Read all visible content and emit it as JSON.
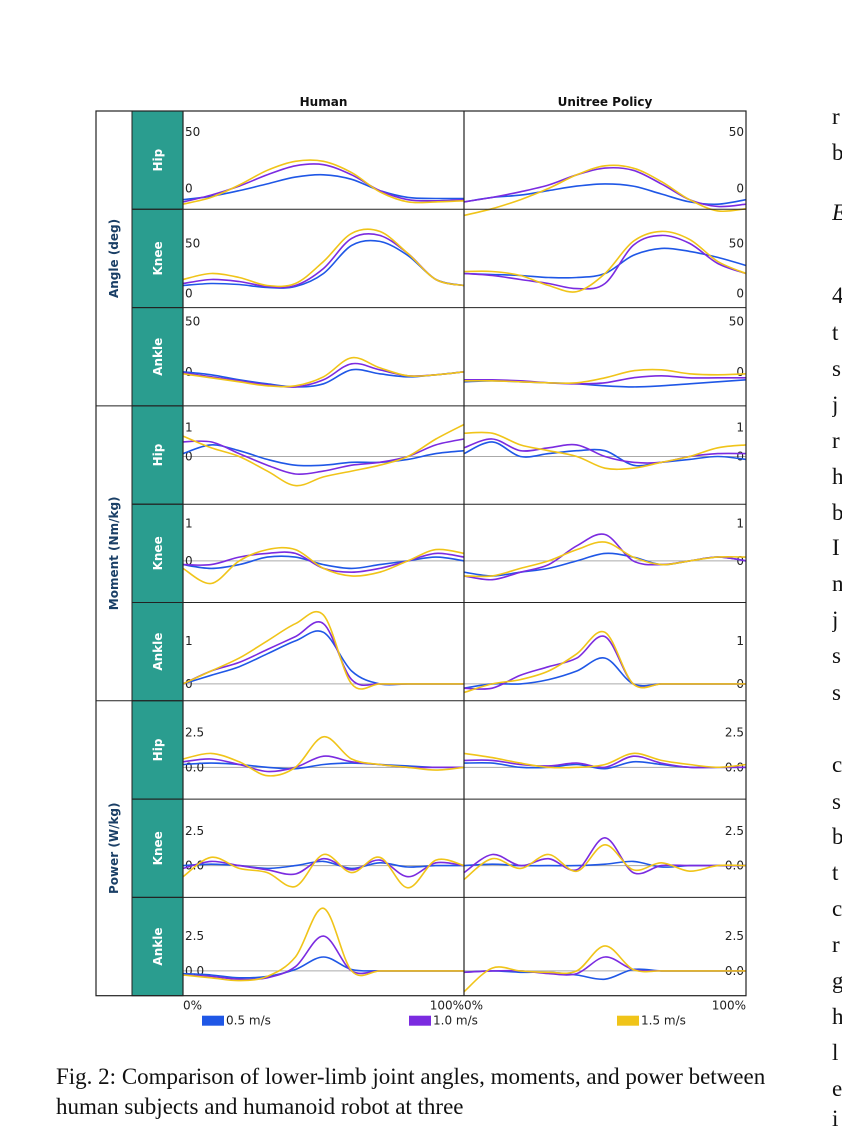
{
  "chart_data": {
    "type": "line",
    "columns": [
      "Human",
      "Unitree Policy"
    ],
    "groups": [
      {
        "label": "Angle (deg)",
        "rows": [
          "Hip",
          "Knee",
          "Ankle"
        ]
      },
      {
        "label": "Moment (Nm/kg)",
        "rows": [
          "Hip",
          "Knee",
          "Ankle"
        ]
      },
      {
        "label": "Power (W/kg)",
        "rows": [
          "Hip",
          "Knee",
          "Ankle"
        ]
      }
    ],
    "x_tick_labels": [
      "0%",
      "100%"
    ],
    "xlim": [
      0,
      100
    ],
    "series_legend": [
      {
        "name": "0.5 m/s",
        "color": "#1f57e6"
      },
      {
        "name": "1.0 m/s",
        "color": "#7b2be0"
      },
      {
        "name": "1.5 m/s",
        "color": "#f0c419"
      }
    ],
    "x": [
      0,
      10,
      20,
      30,
      40,
      50,
      60,
      70,
      80,
      90,
      100
    ],
    "panels": [
      {
        "measure": "Angle (deg)",
        "joint": "Hip",
        "source": "Human",
        "ylim": [
          -15,
          65
        ],
        "yticks": [
          "50",
          "0"
        ],
        "yticks_values": [
          50,
          0
        ],
        "zero_line": false,
        "series": [
          [
            -10,
            -7,
            -2,
            4,
            10,
            12,
            8,
            -2,
            -8,
            -9,
            -9
          ],
          [
            -12,
            -6,
            2,
            12,
            20,
            21,
            12,
            -2,
            -10,
            -11,
            -10
          ],
          [
            -14,
            -8,
            3,
            16,
            24,
            24,
            14,
            -3,
            -12,
            -12,
            -11
          ]
        ]
      },
      {
        "measure": "Angle (deg)",
        "joint": "Hip",
        "source": "Unitree Policy",
        "ylim": [
          -15,
          65
        ],
        "yticks": [
          "50",
          "0"
        ],
        "yticks_values": [
          50,
          0
        ],
        "zero_line": false,
        "series": [
          [
            -12,
            -8,
            -6,
            -2,
            2,
            4,
            2,
            -5,
            -12,
            -14,
            -10
          ],
          [
            -12,
            -8,
            -3,
            3,
            12,
            18,
            16,
            4,
            -10,
            -16,
            -14
          ],
          [
            -24,
            -18,
            -10,
            0,
            12,
            20,
            18,
            6,
            -10,
            -20,
            -18
          ]
        ]
      },
      {
        "measure": "Angle (deg)",
        "joint": "Knee",
        "source": "Human",
        "ylim": [
          -10,
          80
        ],
        "yticks": [
          "50",
          "0"
        ],
        "yticks_values": [
          50,
          0
        ],
        "zero_line": false,
        "series": [
          [
            8,
            10,
            9,
            6,
            7,
            20,
            48,
            52,
            38,
            14,
            8
          ],
          [
            10,
            14,
            12,
            7,
            8,
            25,
            55,
            58,
            40,
            14,
            8
          ],
          [
            14,
            20,
            16,
            8,
            10,
            32,
            60,
            62,
            40,
            14,
            8
          ]
        ]
      },
      {
        "measure": "Angle (deg)",
        "joint": "Knee",
        "source": "Unitree Policy",
        "ylim": [
          -10,
          80
        ],
        "yticks": [
          "50",
          "0"
        ],
        "yticks_values": [
          50,
          0
        ],
        "zero_line": false,
        "series": [
          [
            20,
            19,
            18,
            16,
            16,
            20,
            38,
            45,
            42,
            36,
            28
          ],
          [
            20,
            18,
            14,
            10,
            5,
            10,
            48,
            58,
            50,
            30,
            20
          ],
          [
            22,
            22,
            18,
            8,
            2,
            20,
            52,
            62,
            54,
            32,
            20
          ]
        ]
      },
      {
        "measure": "Angle (deg)",
        "joint": "Ankle",
        "source": "Human",
        "ylim": [
          -30,
          60
        ],
        "yticks": [
          "50",
          "0"
        ],
        "yticks_values": [
          50,
          0
        ],
        "zero_line": false,
        "series": [
          [
            0,
            -3,
            -8,
            -12,
            -15,
            -12,
            2,
            -2,
            -5,
            -3,
            0
          ],
          [
            -1,
            -5,
            -9,
            -13,
            -15,
            -8,
            8,
            2,
            -4,
            -3,
            0
          ],
          [
            -2,
            -6,
            -10,
            -14,
            -14,
            -5,
            14,
            4,
            -4,
            -3,
            0
          ]
        ]
      },
      {
        "measure": "Angle (deg)",
        "joint": "Ankle",
        "source": "Unitree Policy",
        "ylim": [
          -30,
          60
        ],
        "yticks": [
          "50",
          "0"
        ],
        "yticks_values": [
          50,
          0
        ],
        "zero_line": false,
        "series": [
          [
            -10,
            -9,
            -10,
            -11,
            -12,
            -14,
            -15,
            -14,
            -12,
            -10,
            -8
          ],
          [
            -8,
            -8,
            -9,
            -11,
            -12,
            -11,
            -6,
            -4,
            -6,
            -6,
            -6
          ],
          [
            -9,
            -9,
            -10,
            -11,
            -11,
            -6,
            1,
            2,
            -2,
            -3,
            -2
          ]
        ]
      },
      {
        "measure": "Moment (Nm/kg)",
        "joint": "Hip",
        "source": "Human",
        "ylim": [
          -1.5,
          1.6
        ],
        "yticks": [
          "1",
          "0"
        ],
        "yticks_values": [
          1,
          0
        ],
        "zero_line": true,
        "series": [
          [
            0.1,
            0.4,
            0.2,
            -0.1,
            -0.3,
            -0.3,
            -0.2,
            -0.2,
            -0.1,
            0.1,
            0.2
          ],
          [
            0.5,
            0.5,
            0.1,
            -0.3,
            -0.6,
            -0.5,
            -0.3,
            -0.2,
            0.0,
            0.4,
            0.6
          ],
          [
            0.7,
            0.3,
            0.0,
            -0.5,
            -1.0,
            -0.7,
            -0.5,
            -0.3,
            0.0,
            0.6,
            1.1
          ]
        ]
      },
      {
        "measure": "Moment (Nm/kg)",
        "joint": "Hip",
        "source": "Unitree Policy",
        "ylim": [
          -1.5,
          1.6
        ],
        "yticks": [
          "1",
          "0"
        ],
        "yticks_values": [
          1,
          0
        ],
        "zero_line": true,
        "series": [
          [
            0.1,
            0.5,
            0.0,
            0.1,
            0.2,
            0.2,
            -0.3,
            -0.2,
            -0.1,
            0.0,
            -0.1
          ],
          [
            0.3,
            0.6,
            0.2,
            0.3,
            0.4,
            0.0,
            -0.2,
            -0.2,
            0.0,
            0.1,
            0.1
          ],
          [
            0.8,
            0.8,
            0.4,
            0.2,
            0.0,
            -0.4,
            -0.4,
            -0.2,
            0.0,
            0.3,
            0.4
          ]
        ]
      },
      {
        "measure": "Moment (Nm/kg)",
        "joint": "Knee",
        "source": "Human",
        "ylim": [
          -1.0,
          1.4
        ],
        "yticks": [
          "1",
          "0"
        ],
        "yticks_values": [
          1,
          0
        ],
        "zero_line": true,
        "series": [
          [
            -0.1,
            -0.2,
            -0.1,
            0.1,
            0.1,
            -0.1,
            -0.2,
            -0.1,
            0.0,
            0.1,
            0.0
          ],
          [
            -0.1,
            -0.1,
            0.1,
            0.2,
            0.2,
            -0.2,
            -0.3,
            -0.2,
            0.0,
            0.2,
            0.1
          ],
          [
            -0.2,
            -0.6,
            0.0,
            0.3,
            0.3,
            -0.2,
            -0.4,
            -0.3,
            0.0,
            0.3,
            0.2
          ]
        ]
      },
      {
        "measure": "Moment (Nm/kg)",
        "joint": "Knee",
        "source": "Unitree Policy",
        "ylim": [
          -1.0,
          1.4
        ],
        "yticks": [
          "1",
          "0"
        ],
        "yticks_values": [
          1,
          0
        ],
        "zero_line": true,
        "series": [
          [
            -0.3,
            -0.4,
            -0.3,
            -0.2,
            0.0,
            0.2,
            0.1,
            -0.1,
            0.0,
            0.1,
            0.0
          ],
          [
            -0.4,
            -0.5,
            -0.3,
            -0.1,
            0.4,
            0.7,
            0.0,
            -0.1,
            0.0,
            0.1,
            0.0
          ],
          [
            -0.4,
            -0.4,
            -0.2,
            0.0,
            0.3,
            0.5,
            0.1,
            -0.1,
            0.0,
            0.1,
            0.1
          ]
        ]
      },
      {
        "measure": "Moment (Nm/kg)",
        "joint": "Ankle",
        "source": "Human",
        "ylim": [
          -0.3,
          1.8
        ],
        "yticks": [
          "1",
          "0"
        ],
        "yticks_values": [
          1,
          0
        ],
        "zero_line": true,
        "series": [
          [
            0.0,
            0.2,
            0.4,
            0.7,
            1.0,
            1.2,
            0.3,
            0.0,
            0.0,
            0.0,
            0.0
          ],
          [
            0.0,
            0.3,
            0.5,
            0.8,
            1.1,
            1.4,
            0.1,
            0.0,
            0.0,
            0.0,
            0.0
          ],
          [
            0.0,
            0.3,
            0.6,
            1.0,
            1.4,
            1.6,
            0.0,
            0.0,
            0.0,
            0.0,
            0.0
          ]
        ]
      },
      {
        "measure": "Moment (Nm/kg)",
        "joint": "Ankle",
        "source": "Unitree Policy",
        "ylim": [
          -0.3,
          1.8
        ],
        "yticks": [
          "1",
          "0"
        ],
        "yticks_values": [
          1,
          0
        ],
        "zero_line": true,
        "series": [
          [
            -0.1,
            0.0,
            0.0,
            0.1,
            0.3,
            0.6,
            0.0,
            0.0,
            0.0,
            0.0,
            0.0
          ],
          [
            -0.1,
            -0.1,
            0.2,
            0.4,
            0.6,
            1.1,
            0.0,
            0.0,
            0.0,
            0.0,
            0.0
          ],
          [
            -0.2,
            0.0,
            0.1,
            0.3,
            0.7,
            1.2,
            0.0,
            0.0,
            0.0,
            0.0,
            0.0
          ]
        ]
      },
      {
        "measure": "Power (W/kg)",
        "joint": "Hip",
        "source": "Human",
        "ylim": [
          -2.0,
          4.5
        ],
        "yticks": [
          "2.5",
          "0.0"
        ],
        "yticks_values": [
          2.5,
          0
        ],
        "zero_line": true,
        "series": [
          [
            0.2,
            0.3,
            0.2,
            0.0,
            -0.1,
            0.2,
            0.3,
            0.2,
            0.1,
            0.0,
            0.0
          ],
          [
            0.4,
            0.6,
            0.2,
            -0.3,
            0.0,
            0.8,
            0.4,
            0.2,
            0.0,
            0.0,
            0.0
          ],
          [
            0.6,
            1.0,
            0.4,
            -0.6,
            0.0,
            2.2,
            0.6,
            0.2,
            0.0,
            -0.2,
            0.0
          ]
        ]
      },
      {
        "measure": "Power (W/kg)",
        "joint": "Hip",
        "source": "Unitree Policy",
        "ylim": [
          -2.0,
          4.5
        ],
        "yticks": [
          "2.5",
          "0.0"
        ],
        "yticks_values": [
          2.5,
          0
        ],
        "zero_line": true,
        "series": [
          [
            0.3,
            0.3,
            0.0,
            0.0,
            0.2,
            -0.1,
            0.4,
            0.2,
            0.0,
            0.0,
            0.0
          ],
          [
            0.5,
            0.5,
            0.2,
            0.1,
            0.3,
            0.0,
            0.8,
            0.3,
            0.0,
            0.0,
            0.0
          ],
          [
            1.0,
            0.7,
            0.3,
            0.0,
            0.0,
            0.2,
            1.0,
            0.5,
            0.2,
            0.0,
            0.2
          ]
        ]
      },
      {
        "measure": "Power (W/kg)",
        "joint": "Knee",
        "source": "Human",
        "ylim": [
          -2.0,
          4.5
        ],
        "yticks": [
          "2.5",
          "0.0"
        ],
        "yticks_values": [
          2.5,
          0
        ],
        "zero_line": true,
        "series": [
          [
            0.0,
            0.1,
            0.0,
            -0.2,
            0.0,
            0.3,
            -0.2,
            0.2,
            -0.1,
            0.0,
            0.0
          ],
          [
            -0.2,
            0.3,
            0.0,
            -0.3,
            -0.6,
            0.5,
            -0.3,
            0.4,
            -0.8,
            0.2,
            0.0
          ],
          [
            -0.8,
            0.6,
            -0.2,
            -0.5,
            -1.5,
            0.8,
            -0.5,
            0.6,
            -1.6,
            0.4,
            0.0
          ]
        ]
      },
      {
        "measure": "Power (W/kg)",
        "joint": "Knee",
        "source": "Unitree Policy",
        "ylim": [
          -2.0,
          4.5
        ],
        "yticks": [
          "2.5",
          "0.0"
        ],
        "yticks_values": [
          2.5,
          0
        ],
        "zero_line": true,
        "series": [
          [
            0.0,
            0.1,
            0.0,
            0.0,
            0.0,
            0.1,
            0.3,
            -0.1,
            0.0,
            0.0,
            0.0
          ],
          [
            -0.5,
            0.8,
            0.0,
            0.5,
            -0.3,
            2.0,
            -0.5,
            0.0,
            0.0,
            0.0,
            0.0
          ],
          [
            -1.0,
            0.5,
            -0.2,
            0.8,
            -0.4,
            1.5,
            -0.3,
            0.2,
            -0.4,
            0.0,
            0.0
          ]
        ]
      },
      {
        "measure": "Power (W/kg)",
        "joint": "Ankle",
        "source": "Human",
        "ylim": [
          -1.5,
          5.0
        ],
        "yticks": [
          "2.5",
          "0.0"
        ],
        "yticks_values": [
          2.5,
          0
        ],
        "zero_line": true,
        "series": [
          [
            -0.2,
            -0.3,
            -0.5,
            -0.4,
            0.1,
            1.0,
            0.1,
            0.0,
            0.0,
            0.0,
            0.0
          ],
          [
            -0.3,
            -0.4,
            -0.6,
            -0.5,
            0.3,
            2.5,
            0.0,
            0.0,
            0.0,
            0.0,
            0.0
          ],
          [
            -0.3,
            -0.5,
            -0.7,
            -0.4,
            1.0,
            4.5,
            0.0,
            0.0,
            0.0,
            0.0,
            0.0
          ]
        ]
      },
      {
        "measure": "Power (W/kg)",
        "joint": "Ankle",
        "source": "Unitree Policy",
        "ylim": [
          -1.5,
          5.0
        ],
        "yticks": [
          "2.5",
          "0.0"
        ],
        "yticks_values": [
          2.5,
          0
        ],
        "zero_line": true,
        "series": [
          [
            -0.1,
            0.0,
            -0.1,
            -0.1,
            -0.3,
            -0.6,
            0.1,
            0.0,
            0.0,
            0.0,
            0.0
          ],
          [
            -0.1,
            0.0,
            0.0,
            -0.2,
            -0.2,
            1.0,
            0.1,
            0.0,
            0.0,
            0.0,
            0.0
          ],
          [
            -1.5,
            0.2,
            0.0,
            -0.1,
            0.0,
            1.8,
            0.1,
            0.0,
            0.0,
            0.0,
            0.0
          ]
        ]
      }
    ]
  },
  "caption": "Fig. 2: Comparison of lower-limb joint angles, moments, and power between human subjects and humanoid robot at three",
  "right_column_letters": [
    "r",
    "b",
    "E",
    "4",
    "t",
    "s",
    "j",
    "r",
    "h",
    "b",
    "I",
    "n",
    "j",
    "s",
    "s",
    "c",
    "s",
    "b",
    "t",
    "c",
    "r",
    "g",
    "h",
    "l",
    "e",
    "i"
  ],
  "colors": {
    "teal": "#2a9d8f",
    "axis_label": "#1a3f66",
    "zero_line": "#aaaaaa"
  }
}
